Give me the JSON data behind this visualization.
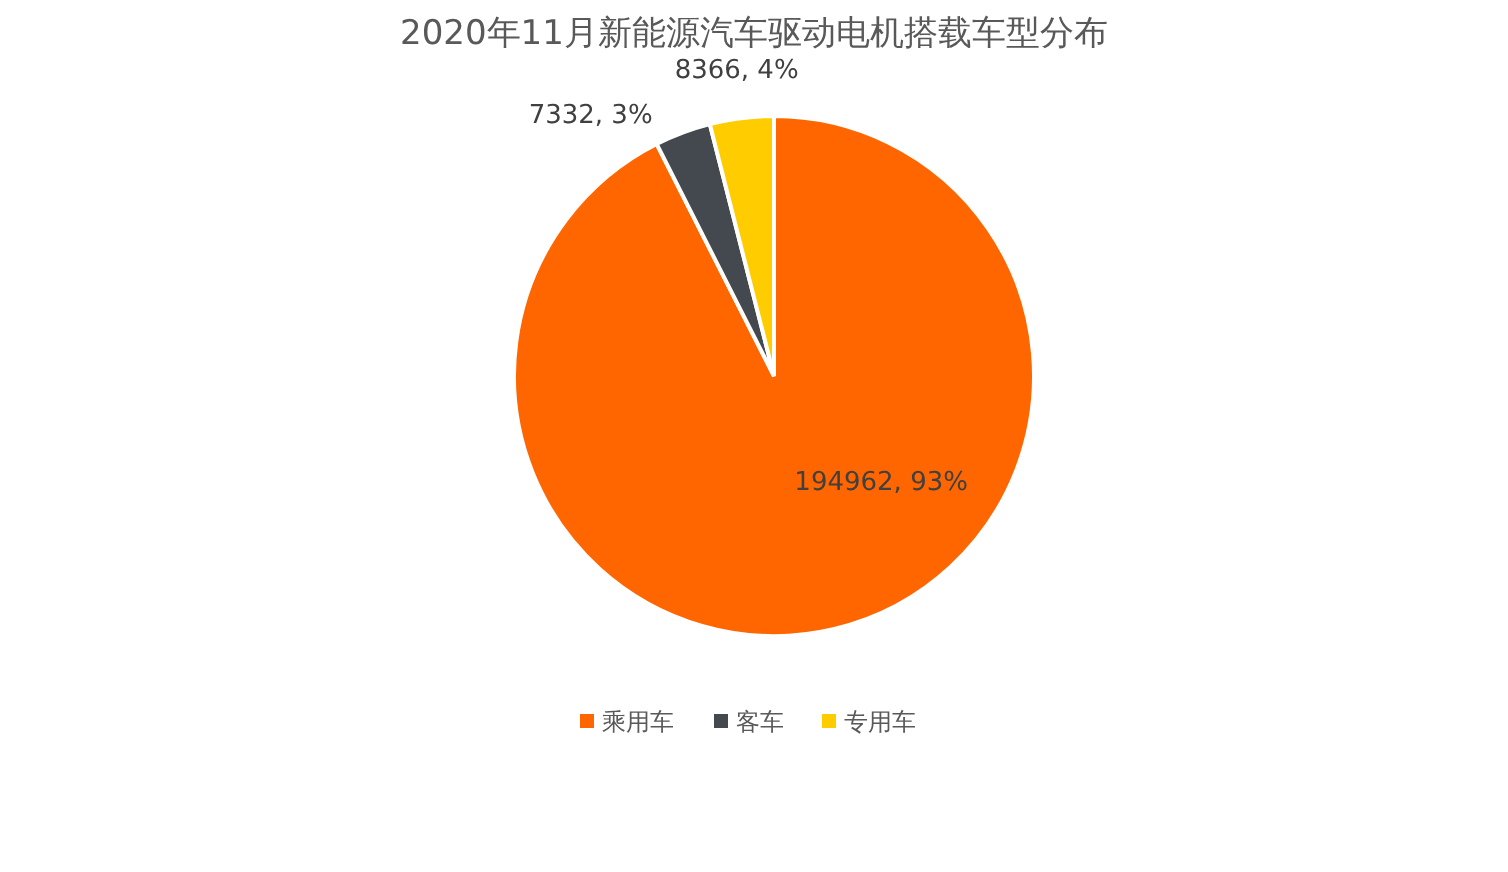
{
  "chart_data": {
    "type": "pie",
    "title": "2020年11月新能源汽车驱动电机搭载车型分布",
    "categories": [
      "乘用车",
      "客车",
      "专用车"
    ],
    "values": [
      194962,
      7332,
      8366
    ],
    "value_labels": [
      "194962, 93%",
      "7332, 3%",
      "8366, 4%"
    ],
    "colors": [
      "#ff6600",
      "#44494f",
      "#ffcc00"
    ],
    "legend": "bottom"
  }
}
